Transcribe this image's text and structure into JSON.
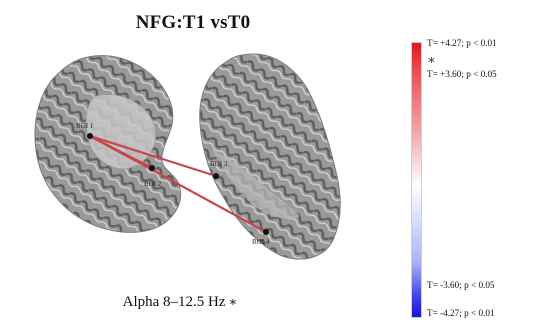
{
  "header": {
    "title": "NFG:T1 vsT0",
    "subtitle": "Alpha 8–12.5 Hz",
    "subtitle_marker": "∗"
  },
  "colorbar": {
    "labels": [
      "T= +4.27; p < 0.01",
      "T= +3.60; p < 0.05",
      "T= -3.60; p < 0.05",
      "T= -4.27; p < 0.01"
    ],
    "marker": "∗",
    "colors": {
      "positive": "#e8141a",
      "neutral": "#ffffff",
      "negative": "#1612e6"
    }
  },
  "regions": [
    {
      "id": "roi1",
      "label": "ROI 1"
    },
    {
      "id": "roi2",
      "label": "ROI 2"
    },
    {
      "id": "roi3",
      "label": "ROI 3"
    },
    {
      "id": "roi4",
      "label": "ROI 4"
    }
  ],
  "connections": [
    {
      "from": "roi1",
      "to": "roi2"
    },
    {
      "from": "roi1",
      "to": "roi3"
    },
    {
      "from": "roi1",
      "to": "roi4"
    }
  ],
  "colors": {
    "connection": "#c9454b",
    "node": "#111111",
    "cortex": "#8a8a8a"
  }
}
